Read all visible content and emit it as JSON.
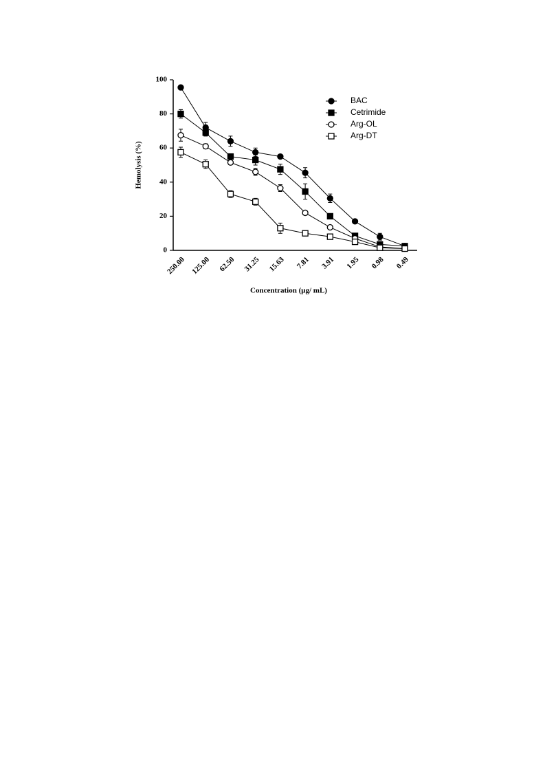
{
  "chart_data": {
    "type": "line",
    "y_label": "Hemolysis (%)",
    "x_label": "Concentration (μg/ mL)",
    "categories": [
      "250.00",
      "125.00",
      "62.50",
      "31.25",
      "15.63",
      "7.81",
      "3.91",
      "1.95",
      "0.98",
      "0.49"
    ],
    "series": [
      {
        "name": "BAC",
        "color": "#000000",
        "marker": "circle",
        "filled": true,
        "values": [
          95.5,
          72,
          64,
          57.5,
          55,
          45.5,
          30.5,
          17,
          8,
          2.5
        ],
        "errors": [
          1,
          3,
          3,
          2.5,
          1,
          3,
          2.5,
          1,
          2,
          1
        ]
      },
      {
        "name": "Cetrimide",
        "color": "#000000",
        "marker": "square",
        "filled": true,
        "values": [
          80,
          69,
          55,
          53,
          47.5,
          34.5,
          20,
          8.5,
          3.5,
          2.5
        ],
        "errors": [
          2.5,
          2,
          1,
          3,
          3,
          4.5,
          1,
          1,
          1,
          0.5
        ]
      },
      {
        "name": "Arg-OL",
        "color": "#000000",
        "marker": "circle",
        "filled": false,
        "values": [
          67.5,
          61,
          51.5,
          46,
          36.5,
          22,
          13.5,
          7,
          2,
          1
        ],
        "errors": [
          3.5,
          1.5,
          1,
          2,
          2,
          1,
          1,
          1,
          1,
          0.5
        ]
      },
      {
        "name": "Arg-DT",
        "color": "#000000",
        "marker": "square",
        "filled": false,
        "values": [
          57.5,
          50.5,
          33,
          28.5,
          13,
          10,
          8,
          5,
          1.5,
          1
        ],
        "errors": [
          3,
          2.5,
          2,
          2,
          3,
          1,
          1,
          1,
          1,
          0.5
        ]
      }
    ],
    "ylim": [
      0,
      100
    ],
    "yticks": [
      0,
      20,
      40,
      60,
      80,
      100
    ],
    "legend": "top-right",
    "grid": false
  }
}
